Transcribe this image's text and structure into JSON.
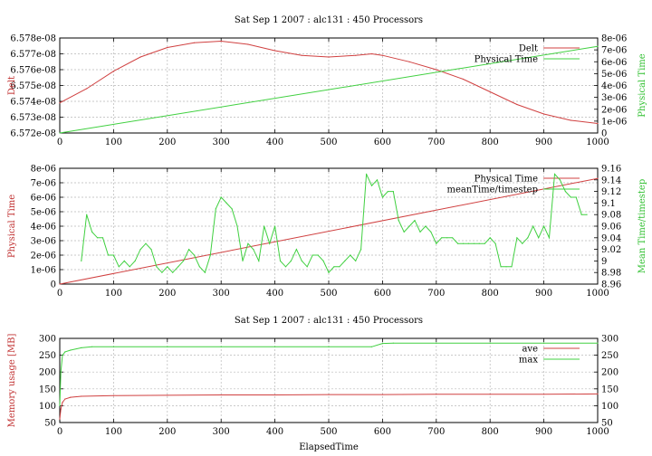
{
  "chart_data": [
    {
      "type": "line",
      "title": "Sat Sep 1 2007 : alc131 : 450 Processors",
      "xlabel": "",
      "ylabel": "Delt",
      "y2label": "Physical Time",
      "xlim": [
        0,
        1000
      ],
      "ylim": [
        6.572e-08,
        6.578e-08
      ],
      "y2lim": [
        0,
        8e-06
      ],
      "grid": true,
      "legend_position": "top-right",
      "xticks": [
        "0",
        "100",
        "200",
        "300",
        "400",
        "500",
        "600",
        "700",
        "800",
        "900",
        "1000"
      ],
      "yticks": [
        "6.572e-08",
        "6.573e-08",
        "6.574e-08",
        "6.575e-08",
        "6.576e-08",
        "6.577e-08",
        "6.578e-08"
      ],
      "y2ticks": [
        "0",
        "1e-06",
        "2e-06",
        "3e-06",
        "4e-06",
        "5e-06",
        "6e-06",
        "7e-06",
        "8e-06"
      ],
      "series": [
        {
          "name": "Delt",
          "axis": "y",
          "color": "#d04040",
          "x": [
            0,
            50,
            100,
            150,
            200,
            250,
            300,
            350,
            400,
            450,
            500,
            550,
            580,
            600,
            650,
            700,
            750,
            800,
            850,
            900,
            950,
            1000
          ],
          "values": [
            6.5739e-08,
            6.5748e-08,
            6.5759e-08,
            6.5768e-08,
            6.5774e-08,
            6.5777e-08,
            6.5778e-08,
            6.5776e-08,
            6.5772e-08,
            6.5769e-08,
            6.5768e-08,
            6.5769e-08,
            6.577e-08,
            6.5769e-08,
            6.5765e-08,
            6.576e-08,
            6.5754e-08,
            6.5746e-08,
            6.5738e-08,
            6.5732e-08,
            6.5728e-08,
            6.5726e-08
          ]
        },
        {
          "name": "Physical Time",
          "axis": "y2",
          "color": "#40d040",
          "x": [
            0,
            1000
          ],
          "values": [
            0,
            7.3e-06
          ]
        }
      ]
    },
    {
      "type": "line",
      "title": "",
      "xlabel": "",
      "ylabel": "Physical Time",
      "y2label": "Mean Time/timestep",
      "xlim": [
        0,
        1000
      ],
      "ylim": [
        0,
        8e-06
      ],
      "y2lim": [
        8.96,
        9.16
      ],
      "grid": true,
      "legend_position": "top-right",
      "xticks": [
        "0",
        "100",
        "200",
        "300",
        "400",
        "500",
        "600",
        "700",
        "800",
        "900",
        "1000"
      ],
      "yticks": [
        "0",
        "1e-06",
        "2e-06",
        "3e-06",
        "4e-06",
        "5e-06",
        "6e-06",
        "7e-06",
        "8e-06"
      ],
      "y2ticks": [
        "8.96",
        "8.98",
        "9",
        "9.02",
        "9.04",
        "9.06",
        "9.08",
        "9.1",
        "9.12",
        "9.14",
        "9.16"
      ],
      "series": [
        {
          "name": "Physical Time",
          "axis": "y",
          "color": "#d04040",
          "x": [
            0,
            1000
          ],
          "values": [
            0,
            7.3e-06
          ]
        },
        {
          "name": "meanTime/timestep",
          "axis": "y2",
          "color": "#40d040",
          "x": [
            40,
            50,
            60,
            70,
            80,
            90,
            100,
            110,
            120,
            130,
            140,
            150,
            160,
            170,
            180,
            190,
            200,
            210,
            220,
            230,
            240,
            250,
            260,
            270,
            280,
            290,
            300,
            310,
            320,
            330,
            340,
            350,
            360,
            370,
            380,
            390,
            400,
            410,
            420,
            430,
            440,
            450,
            460,
            470,
            480,
            490,
            500,
            510,
            520,
            530,
            540,
            550,
            560,
            570,
            580,
            590,
            600,
            610,
            620,
            630,
            640,
            650,
            660,
            670,
            680,
            690,
            700,
            710,
            720,
            730,
            740,
            750,
            760,
            770,
            780,
            790,
            800,
            810,
            820,
            830,
            840,
            850,
            860,
            870,
            880,
            890,
            900,
            910,
            920,
            930,
            940,
            950,
            960,
            970,
            980
          ],
          "values": [
            9.0,
            9.08,
            9.05,
            9.04,
            9.04,
            9.01,
            9.01,
            8.99,
            9.0,
            8.99,
            9.0,
            9.02,
            9.03,
            9.02,
            8.99,
            8.98,
            8.99,
            8.98,
            8.99,
            9.0,
            9.02,
            9.01,
            8.99,
            8.98,
            9.01,
            9.09,
            9.11,
            9.1,
            9.09,
            9.06,
            9.0,
            9.03,
            9.02,
            9.0,
            9.06,
            9.03,
            9.06,
            9.0,
            8.99,
            9.0,
            9.02,
            9.0,
            8.99,
            9.01,
            9.01,
            9.0,
            8.98,
            8.99,
            8.99,
            9.0,
            9.01,
            9.0,
            9.02,
            9.15,
            9.13,
            9.14,
            9.11,
            9.12,
            9.12,
            9.07,
            9.05,
            9.06,
            9.07,
            9.05,
            9.06,
            9.05,
            9.03,
            9.04,
            9.04,
            9.04,
            9.03,
            9.03,
            9.03,
            9.03,
            9.03,
            9.03,
            9.04,
            9.03,
            8.99,
            8.99,
            8.99,
            9.04,
            9.03,
            9.04,
            9.06,
            9.04,
            9.06,
            9.04,
            9.15,
            9.14,
            9.12,
            9.11,
            9.11,
            9.08,
            9.08
          ]
        }
      ]
    },
    {
      "type": "line",
      "title": "Sat Sep 1 2007 : alc131 : 450 Processors",
      "xlabel": "ElapsedTime",
      "ylabel": "Memory usage [MB]",
      "y2label": "",
      "xlim": [
        0,
        1000
      ],
      "ylim": [
        50,
        300
      ],
      "y2lim": [
        50,
        300
      ],
      "grid": true,
      "legend_position": "top-right",
      "xticks": [
        "0",
        "100",
        "200",
        "300",
        "400",
        "500",
        "600",
        "700",
        "800",
        "900",
        "1000"
      ],
      "yticks": [
        "50",
        "100",
        "150",
        "200",
        "250",
        "300"
      ],
      "y2ticks": [
        "50",
        "100",
        "150",
        "200",
        "250",
        "300"
      ],
      "series": [
        {
          "name": "ave",
          "axis": "y",
          "color": "#d04040",
          "x": [
            0,
            2,
            5,
            10,
            20,
            40,
            100,
            200,
            300,
            400,
            500,
            600,
            700,
            800,
            900,
            1000
          ],
          "values": [
            60,
            90,
            110,
            120,
            125,
            128,
            130,
            131,
            132,
            132,
            133,
            133,
            134,
            134,
            134,
            135
          ]
        },
        {
          "name": "max",
          "axis": "y",
          "color": "#40d040",
          "x": [
            0,
            2,
            5,
            10,
            20,
            40,
            60,
            100,
            200,
            300,
            400,
            500,
            580,
            600,
            620,
            700,
            800,
            900,
            1000
          ],
          "values": [
            100,
            200,
            250,
            260,
            265,
            272,
            275,
            275,
            275,
            275,
            275,
            275,
            275,
            285,
            286,
            286,
            286,
            286,
            286
          ]
        }
      ]
    }
  ]
}
